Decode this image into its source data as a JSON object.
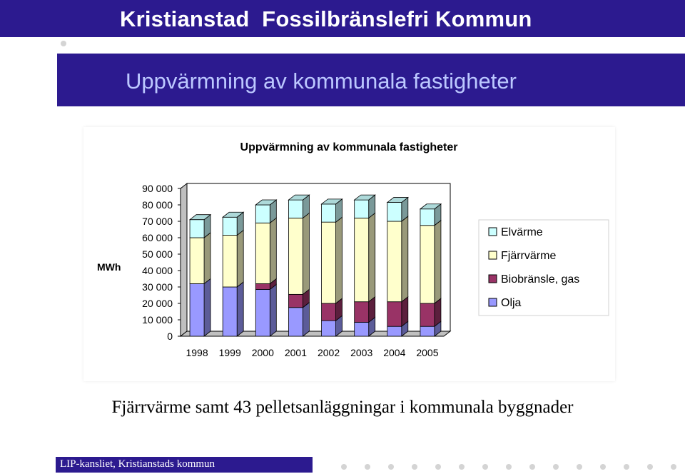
{
  "header": {
    "title": "Kristianstad  Fossilbränslefri Kommun"
  },
  "slide": {
    "subtitle": "Uppvärmning av kommunala fastigheter",
    "caption": "Fjärrvärme samt 43 pelletsanläggningar i kommunala byggnader",
    "footer": "LIP-kansliet, Kristianstads kommun"
  },
  "chart_data": {
    "type": "bar",
    "stacked": true,
    "three_d": true,
    "title": "Uppvärmning av kommunala fastigheter",
    "ylabel": "MWh",
    "xlabel": "",
    "ylim": [
      0,
      90000
    ],
    "yticks": [
      0,
      10000,
      20000,
      30000,
      40000,
      50000,
      60000,
      70000,
      80000,
      90000
    ],
    "ytick_labels": [
      "0",
      "10 000",
      "20 000",
      "30 000",
      "40 000",
      "50 000",
      "60 000",
      "70 000",
      "80 000",
      "90 000"
    ],
    "categories": [
      "1998",
      "1999",
      "2000",
      "2001",
      "2002",
      "2003",
      "2004",
      "2005"
    ],
    "legend_position": "right",
    "grid": false,
    "series": [
      {
        "name": "Olja",
        "color": "#9999ff",
        "values": [
          32000,
          30000,
          28500,
          17500,
          9500,
          8500,
          6000,
          6000
        ]
      },
      {
        "name": "Biobränsle, gas",
        "color": "#993366",
        "values": [
          0,
          0,
          3500,
          8000,
          10500,
          12500,
          15000,
          14000
        ]
      },
      {
        "name": "Fjärrvärme",
        "color": "#ffffcc",
        "values": [
          28000,
          31500,
          37000,
          46500,
          49500,
          51000,
          49000,
          47500
        ]
      },
      {
        "name": "Elvärme",
        "color": "#ccffff",
        "values": [
          11000,
          11000,
          11000,
          11000,
          11000,
          11000,
          11500,
          10000
        ]
      }
    ]
  }
}
